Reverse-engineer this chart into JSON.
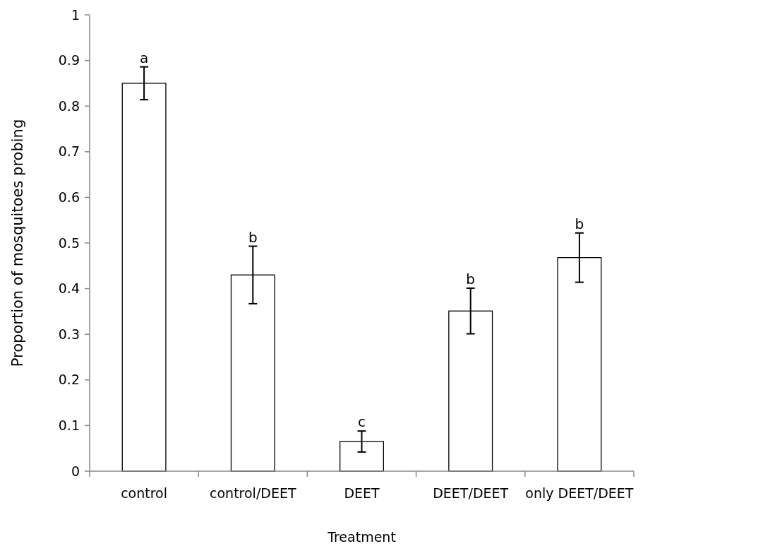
{
  "chart_data": {
    "type": "bar",
    "xlabel": "Treatment",
    "ylabel": "Proportion of mosquitoes probing",
    "categories": [
      "control",
      "control/DEET",
      "DEET",
      "DEET/DEET",
      "only DEET/DEET"
    ],
    "values": [
      0.85,
      0.43,
      0.065,
      0.351,
      0.468
    ],
    "errors": [
      0.036,
      0.063,
      0.023,
      0.05,
      0.054
    ],
    "color": "#ffffff",
    "ylim": [
      0,
      1
    ],
    "yticks": [
      0,
      0.1,
      0.2,
      0.3,
      0.4,
      0.5,
      0.6,
      0.7,
      0.8,
      0.9,
      1
    ],
    "annotations": [
      {
        "text": "a",
        "x": "control",
        "y": 0.886
      },
      {
        "text": "b",
        "x": "control/DEET",
        "y": 0.493
      },
      {
        "text": "c",
        "x": "DEET",
        "y": 0.088
      },
      {
        "text": "b",
        "x": "DEET/DEET",
        "y": 0.401
      },
      {
        "text": "b",
        "x": "only DEET/DEET",
        "y": 0.522
      }
    ],
    "grid": false
  }
}
